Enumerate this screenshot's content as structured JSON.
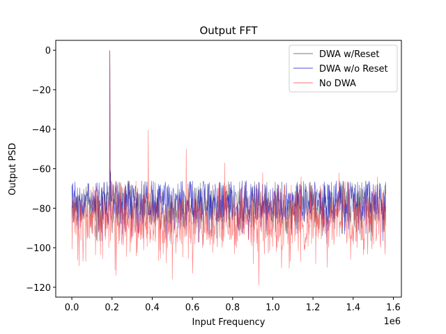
{
  "chart_data": {
    "type": "line",
    "title": "Output FFT",
    "xlabel": "Input Frequency",
    "ylabel": "Output PSD",
    "x_offset_label": "1e6",
    "xlim": [
      -0.08,
      1.64
    ],
    "ylim": [
      -125,
      5
    ],
    "x_ticks": [
      0.0,
      0.2,
      0.4,
      0.6,
      0.8,
      1.0,
      1.2,
      1.4,
      1.6
    ],
    "x_tick_labels": [
      "0.0",
      "0.2",
      "0.4",
      "0.6",
      "0.8",
      "1.0",
      "1.2",
      "1.4",
      "1.6"
    ],
    "y_ticks": [
      0,
      -20,
      -40,
      -60,
      -80,
      -100,
      -120
    ],
    "y_tick_labels": [
      "0",
      "−20",
      "−40",
      "−60",
      "−80",
      "−100",
      "−120"
    ],
    "x_range": [
      0.0,
      1.5625
    ],
    "legend_position": "top-right",
    "grid": false,
    "signal_frequency": 0.19,
    "series": [
      {
        "name": "DWA w/Reset",
        "color": "#404040",
        "noise_floor_mean": -79,
        "noise_spread": 7,
        "peaks": [
          [
            0.19,
            0.0
          ],
          [
            0.193,
            -61
          ]
        ]
      },
      {
        "name": "DWA w/o Reset",
        "color": "#0000cc",
        "noise_floor_mean": -77,
        "noise_spread": 7,
        "peaks": [
          [
            0.19,
            -0.5
          ],
          [
            0.193,
            -62
          ]
        ]
      },
      {
        "name": "No DWA",
        "color": "#ff3333",
        "noise_floor_mean": -86,
        "noise_spread": 9,
        "peaks": [
          [
            0.19,
            0.0
          ],
          [
            0.38,
            -40.5
          ],
          [
            0.57,
            -50
          ],
          [
            0.76,
            -57
          ],
          [
            0.95,
            -62
          ],
          [
            1.14,
            -64
          ],
          [
            1.33,
            -62
          ],
          [
            1.52,
            -64
          ]
        ],
        "dips": [
          [
            0.22,
            -114
          ],
          [
            0.5,
            -116
          ],
          [
            0.93,
            -119
          ],
          [
            0.6,
            -113
          ],
          [
            1.27,
            -110
          ]
        ]
      }
    ]
  }
}
